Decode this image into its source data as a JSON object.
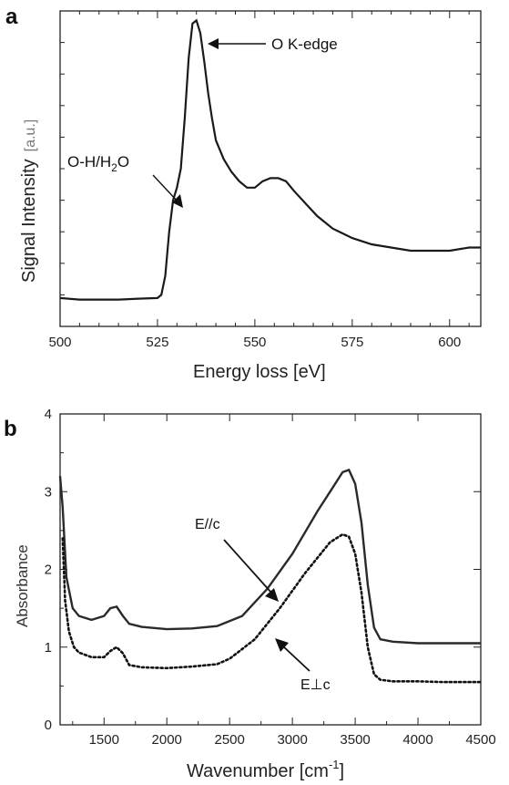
{
  "chart_data": [
    {
      "type": "line",
      "panel": "a",
      "title": "",
      "xlabel": "Energy loss [eV]",
      "ylabel": "Signal Intensity [a.u.]",
      "xlim": [
        500,
        608
      ],
      "ylim": [
        0,
        1
      ],
      "xticks": [
        "500",
        "525",
        "550",
        "575",
        "600"
      ],
      "grid": false,
      "series": [
        {
          "x": [
            500,
            505,
            510,
            515,
            520,
            525,
            526,
            527,
            528,
            529,
            530,
            531,
            532,
            533,
            534,
            535,
            536,
            537,
            538,
            539,
            540,
            542,
            544,
            546,
            548,
            550,
            552,
            554,
            556,
            558,
            560,
            563,
            566,
            570,
            575,
            580,
            585,
            590,
            595,
            600,
            605,
            608
          ],
          "y": [
            0.09,
            0.085,
            0.085,
            0.085,
            0.088,
            0.09,
            0.1,
            0.16,
            0.3,
            0.4,
            0.44,
            0.5,
            0.66,
            0.85,
            0.96,
            0.97,
            0.93,
            0.84,
            0.74,
            0.66,
            0.59,
            0.53,
            0.49,
            0.46,
            0.44,
            0.44,
            0.46,
            0.47,
            0.47,
            0.46,
            0.43,
            0.39,
            0.35,
            0.31,
            0.28,
            0.26,
            0.25,
            0.24,
            0.24,
            0.24,
            0.25,
            0.25
          ]
        }
      ],
      "annotations": [
        {
          "text": "O K-edge",
          "x": 535,
          "y": 0.97
        },
        {
          "text": "O-H/H₂O",
          "x": 529,
          "y": 0.44
        }
      ]
    },
    {
      "type": "line",
      "panel": "b",
      "title": "",
      "xlabel": "Wavenumber [cm⁻¹]",
      "ylabel": "Absorbance",
      "xlim": [
        1150,
        4500
      ],
      "ylim": [
        0,
        4
      ],
      "xticks": [
        "1500",
        "2000",
        "2500",
        "3000",
        "3500",
        "4000",
        "4500"
      ],
      "yticks": [
        "0",
        "1",
        "2",
        "3",
        "4"
      ],
      "grid": false,
      "series": [
        {
          "name": "E//c",
          "style": "solid",
          "x": [
            1150,
            1170,
            1200,
            1250,
            1300,
            1400,
            1500,
            1550,
            1600,
            1650,
            1700,
            1800,
            2000,
            2200,
            2400,
            2600,
            2800,
            3000,
            3200,
            3300,
            3400,
            3450,
            3500,
            3550,
            3600,
            3650,
            3700,
            3800,
            4000,
            4200,
            4500
          ],
          "y": [
            3.2,
            2.8,
            1.9,
            1.5,
            1.4,
            1.35,
            1.4,
            1.5,
            1.52,
            1.4,
            1.3,
            1.26,
            1.23,
            1.24,
            1.27,
            1.4,
            1.75,
            2.2,
            2.75,
            3.0,
            3.25,
            3.28,
            3.1,
            2.6,
            1.8,
            1.25,
            1.1,
            1.07,
            1.05,
            1.05,
            1.05
          ]
        },
        {
          "name": "E⊥c",
          "style": "dotted",
          "x": [
            1170,
            1190,
            1220,
            1260,
            1300,
            1400,
            1500,
            1550,
            1600,
            1650,
            1700,
            1800,
            2000,
            2200,
            2400,
            2500,
            2700,
            2900,
            3100,
            3300,
            3400,
            3450,
            3500,
            3550,
            3600,
            3650,
            3700,
            3800,
            4000,
            4200,
            4500
          ],
          "y": [
            2.4,
            1.6,
            1.2,
            1.0,
            0.93,
            0.87,
            0.87,
            0.95,
            1.0,
            0.92,
            0.77,
            0.74,
            0.73,
            0.75,
            0.78,
            0.85,
            1.1,
            1.5,
            1.95,
            2.35,
            2.45,
            2.42,
            2.2,
            1.7,
            1.0,
            0.65,
            0.58,
            0.56,
            0.56,
            0.55,
            0.55
          ]
        }
      ],
      "annotations": [
        {
          "text": "E//c",
          "x": 2900,
          "y": 2.1
        },
        {
          "text": "E⊥c",
          "x": 3150,
          "y": 0.8
        }
      ]
    }
  ],
  "labels": {
    "panel_a": "a",
    "panel_b": "b",
    "a_ylabel_main": "Signal Intensity",
    "a_ylabel_unit": "[a.u.]",
    "a_xlabel": "Energy loss [eV]",
    "a_annot_okedge": "O K-edge",
    "a_annot_oh_pre": "O-H/H",
    "a_annot_oh_sub": "2",
    "a_annot_oh_post": "O",
    "b_xlabel_pre": "Wavenumber [cm",
    "b_xlabel_sup": "-1",
    "b_xlabel_post": "]",
    "b_ylabel": "Absorbance",
    "b_annot_par": "E//c",
    "b_annot_perp": "E⊥c"
  }
}
